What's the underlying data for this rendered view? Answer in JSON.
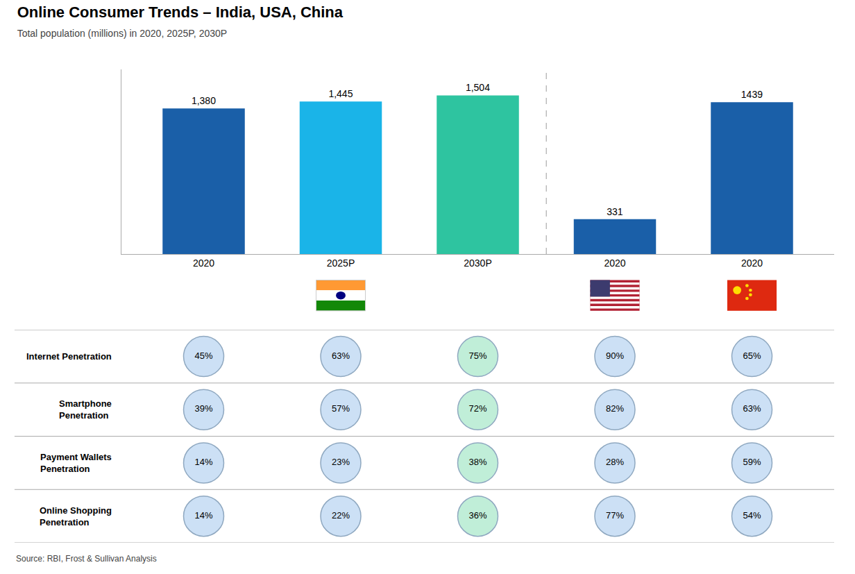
{
  "chart_data": [
    {
      "type": "bar",
      "title": "Online Consumer Trends – India, USA, China",
      "subtitle": "Total population (millions) in 2020, 2025P, 2030P",
      "source": "Source: RBI, Frost & Sullivan Analysis",
      "categories": [
        "2020",
        "2025P",
        "2030P",
        "2020",
        "2020"
      ],
      "values": [
        1380,
        1445,
        1504,
        331,
        1439
      ],
      "value_labels": [
        "1,380",
        "1,445",
        "1,504",
        "331",
        "1439"
      ],
      "colors": [
        "#1a5fa8",
        "#1ab4e8",
        "#2ec4a0",
        "#1a5fa8",
        "#1a5fa8"
      ],
      "ylim": [
        0,
        1750
      ],
      "data_labels": true,
      "tick_labels": "x",
      "grid": false
    },
    {
      "type": "table",
      "row_labels": [
        "Internet Penetration",
        "Smartphone\nPenetration",
        "Payment Wallets\nPenetration",
        "Online Shopping\nPenetration"
      ],
      "values": [
        [
          45,
          63,
          75,
          90,
          65
        ],
        [
          39,
          57,
          72,
          82,
          63
        ],
        [
          14,
          23,
          38,
          28,
          59
        ],
        [
          14,
          22,
          36,
          77,
          54
        ]
      ],
      "value_labels": [
        [
          "45%",
          "63%",
          "75%",
          "90%",
          "65%"
        ],
        [
          "39%",
          "57%",
          "72%",
          "82%",
          "63%"
        ],
        [
          "14%",
          "23%",
          "38%",
          "28%",
          "59%"
        ],
        [
          "14%",
          "22%",
          "36%",
          "77%",
          "54%"
        ]
      ],
      "colors": [
        "#cce0f5",
        "#cce0f5",
        "#c0eed8",
        "#cce0f5",
        "#cce0f5"
      ]
    }
  ]
}
